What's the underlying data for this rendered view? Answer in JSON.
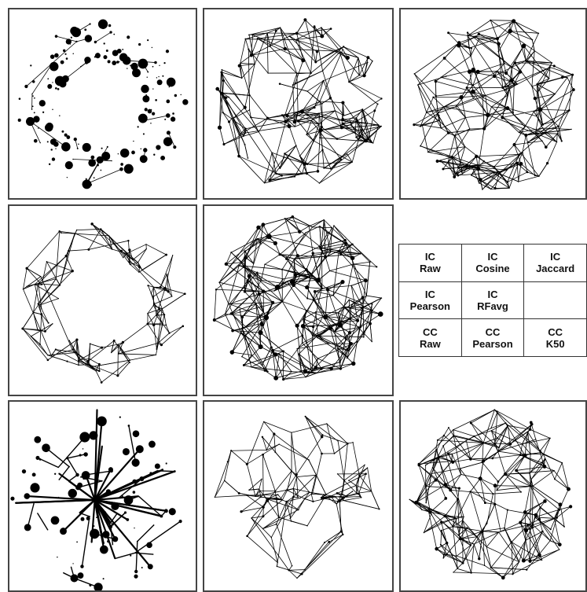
{
  "legend": {
    "rows": [
      [
        {
          "line1": "IC",
          "line2": "Raw"
        },
        {
          "line1": "IC",
          "line2": "Cosine"
        },
        {
          "line1": "IC",
          "line2": "Jaccard"
        }
      ],
      [
        {
          "line1": "IC",
          "line2": "Pearson"
        },
        {
          "line1": "IC",
          "line2": "RFavg"
        },
        {
          "line1": "",
          "line2": ""
        }
      ],
      [
        {
          "line1": "CC",
          "line2": "Raw"
        },
        {
          "line1": "CC",
          "line2": "Pearson"
        },
        {
          "line1": "CC",
          "line2": "K50"
        }
      ]
    ]
  },
  "panels": [
    {
      "id": "p1",
      "layout": "ring",
      "nodes": 170,
      "edge_density": 0.15,
      "node_scale": 2.6,
      "seed": 11
    },
    {
      "id": "p2",
      "layout": "disc",
      "nodes": 150,
      "edge_density": 2.4,
      "node_scale": 0.9,
      "seed": 23
    },
    {
      "id": "p3",
      "layout": "disc",
      "nodes": 155,
      "edge_density": 2.6,
      "node_scale": 1.0,
      "seed": 37
    },
    {
      "id": "p4",
      "layout": "ring",
      "nodes": 110,
      "edge_density": 2.2,
      "node_scale": 0.5,
      "seed": 41
    },
    {
      "id": "p5",
      "layout": "disc",
      "nodes": 190,
      "edge_density": 2.8,
      "node_scale": 1.2,
      "seed": 53
    },
    {
      "id": "p7",
      "layout": "hub",
      "nodes": 120,
      "edge_density": 0.3,
      "node_scale": 2.8,
      "seed": 67
    },
    {
      "id": "p8",
      "layout": "corridor",
      "nodes": 110,
      "edge_density": 2.0,
      "node_scale": 0.5,
      "seed": 71
    },
    {
      "id": "p9",
      "layout": "disc",
      "nodes": 165,
      "edge_density": 2.6,
      "node_scale": 0.9,
      "seed": 89
    }
  ],
  "colors": {
    "ink": "#000000",
    "frame": "#444444"
  }
}
